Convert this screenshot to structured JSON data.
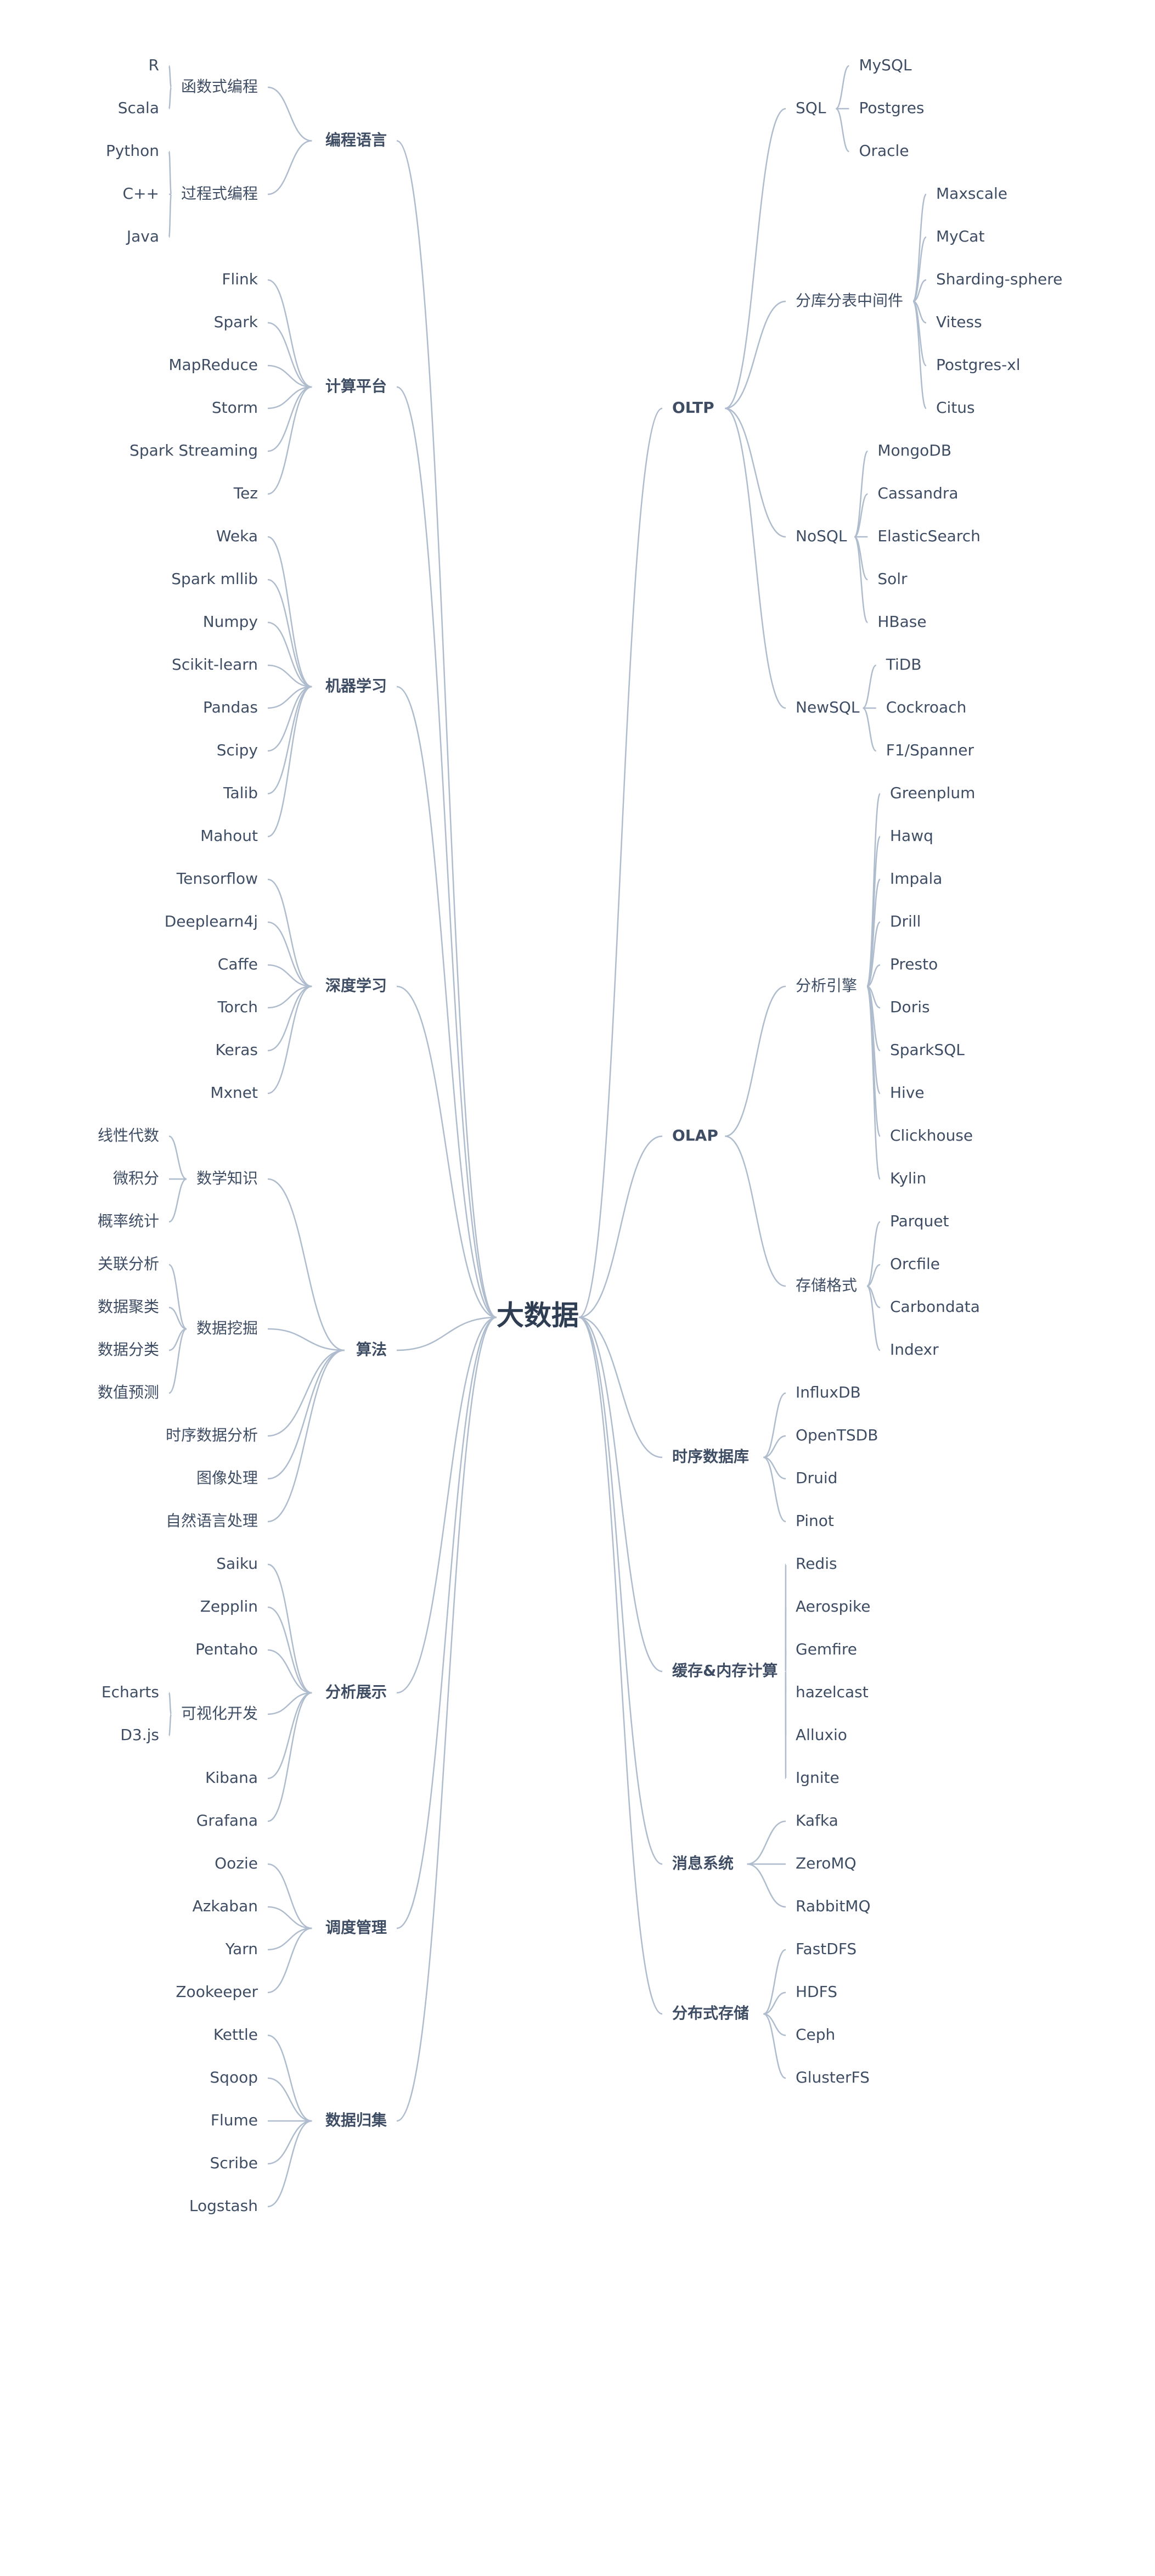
{
  "root": "大数据",
  "colors": {
    "line": "#aebccd",
    "text": "#3e4d63",
    "root_text": "#2f3d52",
    "background": "#ffffff"
  },
  "left_branches": [
    {
      "label": "编程语言",
      "children": [
        {
          "label": "函数式编程",
          "children": [
            "R",
            "Scala"
          ]
        },
        {
          "label": "过程式编程",
          "children": [
            "Python",
            "C++",
            "Java"
          ]
        }
      ]
    },
    {
      "label": "计算平台",
      "children": [
        "Flink",
        "Spark",
        "MapReduce",
        "Storm",
        "Spark Streaming",
        "Tez"
      ]
    },
    {
      "label": "机器学习",
      "children": [
        "Weka",
        "Spark mllib",
        "Numpy",
        "Scikit-learn",
        "Pandas",
        "Scipy",
        "Talib",
        "Mahout"
      ]
    },
    {
      "label": "深度学习",
      "children": [
        "Tensorflow",
        "Deeplearn4j",
        "Caffe",
        "Torch",
        "Keras",
        "Mxnet"
      ]
    },
    {
      "label": "算法",
      "children": [
        {
          "label": "数学知识",
          "children": [
            "线性代数",
            "微积分",
            "概率统计"
          ]
        },
        {
          "label": "数据挖掘",
          "children": [
            "关联分析",
            "数据聚类",
            "数据分类",
            "数值预测"
          ]
        },
        "时序数据分析",
        "图像处理",
        "自然语言处理"
      ]
    },
    {
      "label": "分析展示",
      "children": [
        "Saiku",
        "Zepplin",
        "Pentaho",
        {
          "label": "可视化开发",
          "children": [
            "Echarts",
            "D3.js"
          ]
        },
        "Kibana",
        "Grafana"
      ]
    },
    {
      "label": "调度管理",
      "children": [
        "Oozie",
        "Azkaban",
        "Yarn",
        "Zookeeper"
      ]
    },
    {
      "label": "数据归集",
      "children": [
        "Kettle",
        "Sqoop",
        "Flume",
        "Scribe",
        "Logstash"
      ]
    }
  ],
  "right_branches": [
    {
      "label": "OLTP",
      "children": [
        {
          "label": "SQL",
          "children": [
            "MySQL",
            "Postgres",
            "Oracle"
          ]
        },
        {
          "label": "分库分表中间件",
          "children": [
            "Maxscale",
            "MyCat",
            "Sharding-sphere",
            "Vitess",
            "Postgres-xl",
            "Citus"
          ]
        },
        {
          "label": "NoSQL",
          "children": [
            "MongoDB",
            "Cassandra",
            "ElasticSearch",
            "Solr",
            "HBase"
          ]
        },
        {
          "label": "NewSQL",
          "children": [
            "TiDB",
            "Cockroach",
            "F1/Spanner"
          ]
        }
      ]
    },
    {
      "label": "OLAP",
      "children": [
        {
          "label": "分析引擎",
          "children": [
            "Greenplum",
            "Hawq",
            "Impala",
            "Drill",
            "Presto",
            "Doris",
            "SparkSQL",
            "Hive",
            "Clickhouse",
            "Kylin"
          ]
        },
        {
          "label": "存储格式",
          "children": [
            "Parquet",
            "Orcfile",
            "Carbondata",
            "Indexr"
          ]
        }
      ]
    },
    {
      "label": "时序数据库",
      "children": [
        "InfluxDB",
        "OpenTSDB",
        "Druid",
        "Pinot"
      ]
    },
    {
      "label": "缓存&内存计算",
      "children": [
        "Redis",
        "Aerospike",
        "Gemfire",
        "hazelcast",
        "Alluxio",
        "Ignite"
      ]
    },
    {
      "label": "消息系统",
      "children": [
        "Kafka",
        "ZeroMQ",
        "RabbitMQ"
      ]
    },
    {
      "label": "分布式存储",
      "children": [
        "FastDFS",
        "HDFS",
        "Ceph",
        "GlusterFS"
      ]
    }
  ]
}
